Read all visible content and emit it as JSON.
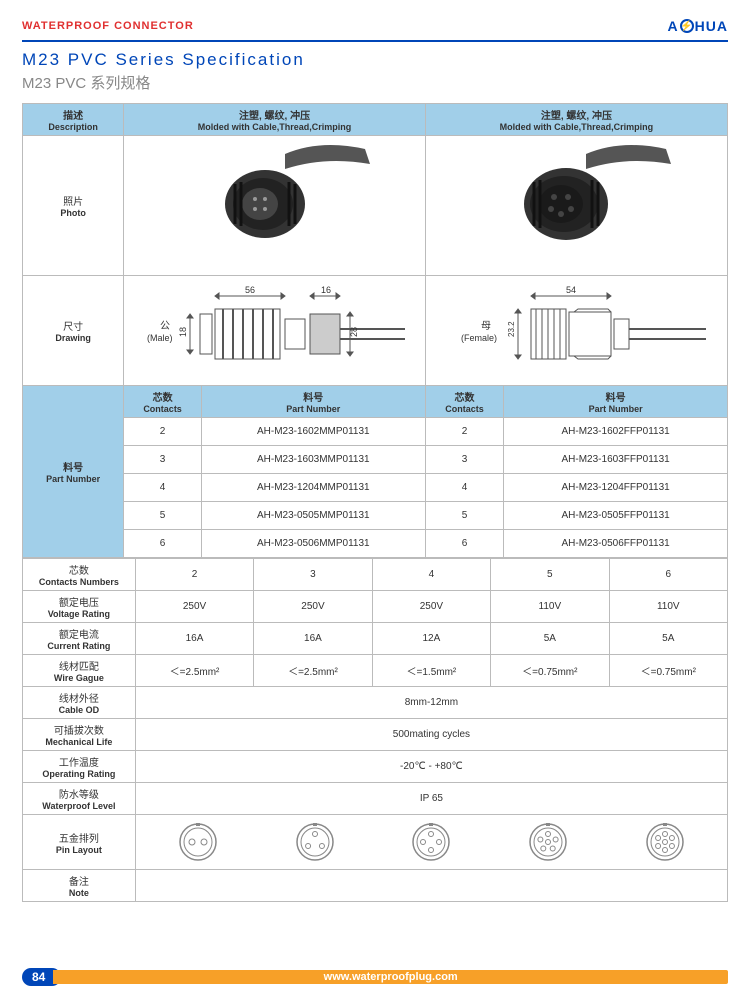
{
  "header": {
    "category": "WATERPROOF CONNECTOR",
    "logo_brand_a": "A",
    "logo_brand_hua": "HUA",
    "logo_bolt": "⚡"
  },
  "title": {
    "en": "M23 PVC Series Specification",
    "cn": "M23 PVC 系列规格"
  },
  "colhdr": {
    "desc_cn": "描述",
    "desc_en": "Description",
    "mold_cn": "注塑, 螺纹, 冲压",
    "mold_en": "Molded with Cable,Thread,Crimping"
  },
  "rows": {
    "photo_cn": "照片",
    "photo_en": "Photo",
    "drawing_cn": "尺寸",
    "drawing_en": "Drawing",
    "partnum_cn": "料号",
    "partnum_en": "Part Number"
  },
  "drawing": {
    "male_cn": "公",
    "male_en": "(Male)",
    "female_cn": "母",
    "female_en": "(Female)",
    "dim_56": "56",
    "dim_16": "16",
    "dim_18": "18",
    "dim_28": "28",
    "dim_54": "54",
    "dim_23_2": "23.2"
  },
  "subhdr": {
    "contacts_cn": "芯数",
    "contacts_en": "Contacts",
    "partnum_cn": "料号",
    "partnum_en": "Part Number"
  },
  "parts_male": [
    {
      "c": "2",
      "pn": "AH-M23-1602MMP01131"
    },
    {
      "c": "3",
      "pn": "AH-M23-1603MMP01131"
    },
    {
      "c": "4",
      "pn": "AH-M23-1204MMP01131"
    },
    {
      "c": "5",
      "pn": "AH-M23-0505MMP01131"
    },
    {
      "c": "6",
      "pn": "AH-M23-0506MMP01131"
    }
  ],
  "parts_female": [
    {
      "c": "2",
      "pn": "AH-M23-1602FFP01131"
    },
    {
      "c": "3",
      "pn": "AH-M23-1603FFP01131"
    },
    {
      "c": "4",
      "pn": "AH-M23-1204FFP01131"
    },
    {
      "c": "5",
      "pn": "AH-M23-0505FFP01131"
    },
    {
      "c": "6",
      "pn": "AH-M23-0506FFP01131"
    }
  ],
  "specs": {
    "contacts_nums_cn": "芯数",
    "contacts_nums_en": "Contacts Numbers",
    "contacts_vals": [
      "2",
      "3",
      "4",
      "5",
      "6"
    ],
    "voltage_cn": "额定电压",
    "voltage_en": "Voltage Rating",
    "voltage_vals": [
      "250V",
      "250V",
      "250V",
      "110V",
      "110V"
    ],
    "current_cn": "额定电流",
    "current_en": "Current Rating",
    "current_vals": [
      "16A",
      "16A",
      "12A",
      "5A",
      "5A"
    ],
    "wire_cn": "线材匹配",
    "wire_en": "Wire Gague",
    "wire_vals": [
      "＜=2.5mm²",
      "＜=2.5mm²",
      "＜=1.5mm²",
      "＜=0.75mm²",
      "＜=0.75mm²"
    ],
    "cableod_cn": "线材外径",
    "cableod_en": "Cable OD",
    "cableod_val": "8mm-12mm",
    "mechlife_cn": "可插拔次数",
    "mechlife_en": "Mechanical Life",
    "mechlife_val": "500mating cycles",
    "temp_cn": "工作温度",
    "temp_en": "Operating Rating",
    "temp_val": "-20℃ - +80℃",
    "wp_cn": "防水等级",
    "wp_en": "Waterproof Level",
    "wp_val": "IP 65",
    "pin_cn": "五金排列",
    "pin_en": "Pin Layout",
    "note_cn": "备注",
    "note_en": "Note"
  },
  "pin_layouts": [
    2,
    3,
    4,
    5,
    6
  ],
  "footer": {
    "page": "84",
    "url": "www.waterproofplug.com"
  },
  "colors": {
    "brand_red": "#e03030",
    "brand_blue": "#0046b8",
    "header_blue": "#a1cfe9",
    "footer_orange": "#f7a028",
    "border": "#bbbbbb"
  }
}
